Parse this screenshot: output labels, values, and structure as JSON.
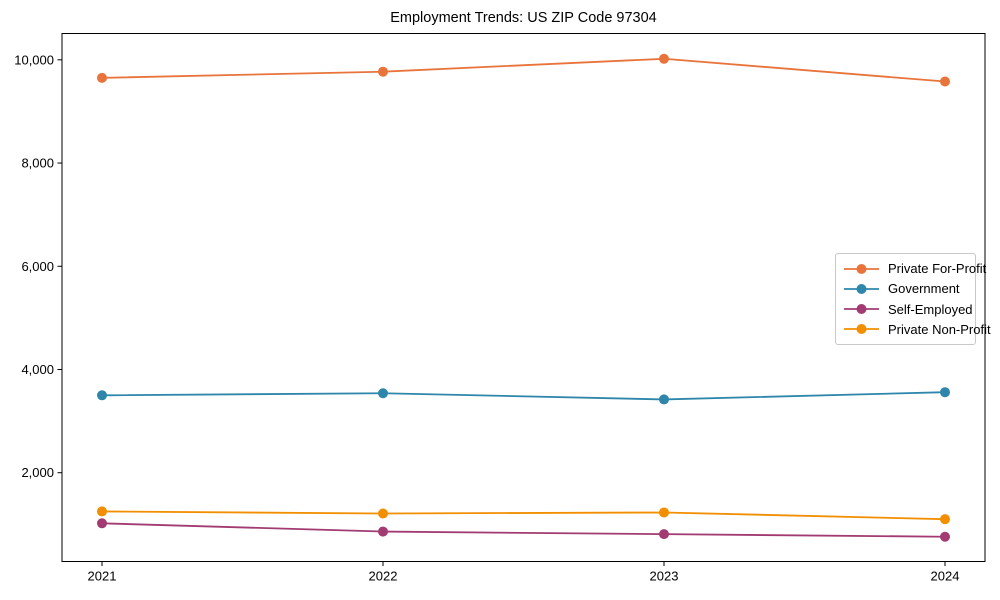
{
  "chart_data": {
    "type": "line",
    "title": "Employment Trends: US ZIP Code 97304",
    "xlabel": "",
    "ylabel": "",
    "x": [
      2021,
      2022,
      2023,
      2024
    ],
    "xtick_labels": [
      "2021",
      "2022",
      "2023",
      "2024"
    ],
    "yticks": [
      2000,
      4000,
      6000,
      8000,
      10000
    ],
    "ytick_labels": [
      "2,000",
      "4,000",
      "6,000",
      "8,000",
      "10,000"
    ],
    "ylim": [
      280,
      10510
    ],
    "grid": false,
    "legend_position": "center right",
    "marker": "circle",
    "axis_color": "#000000",
    "series": [
      {
        "name": "Private For-Profit",
        "color": "#E8743B",
        "values": [
          9650,
          9770,
          10020,
          9580
        ]
      },
      {
        "name": "Government",
        "color": "#2E86AB",
        "values": [
          3500,
          3540,
          3420,
          3560
        ]
      },
      {
        "name": "Self-Employed",
        "color": "#A23B72",
        "values": [
          1020,
          860,
          810,
          760
        ]
      },
      {
        "name": "Private Non-Profit",
        "color": "#F18F01",
        "values": [
          1250,
          1210,
          1230,
          1100
        ]
      }
    ]
  }
}
